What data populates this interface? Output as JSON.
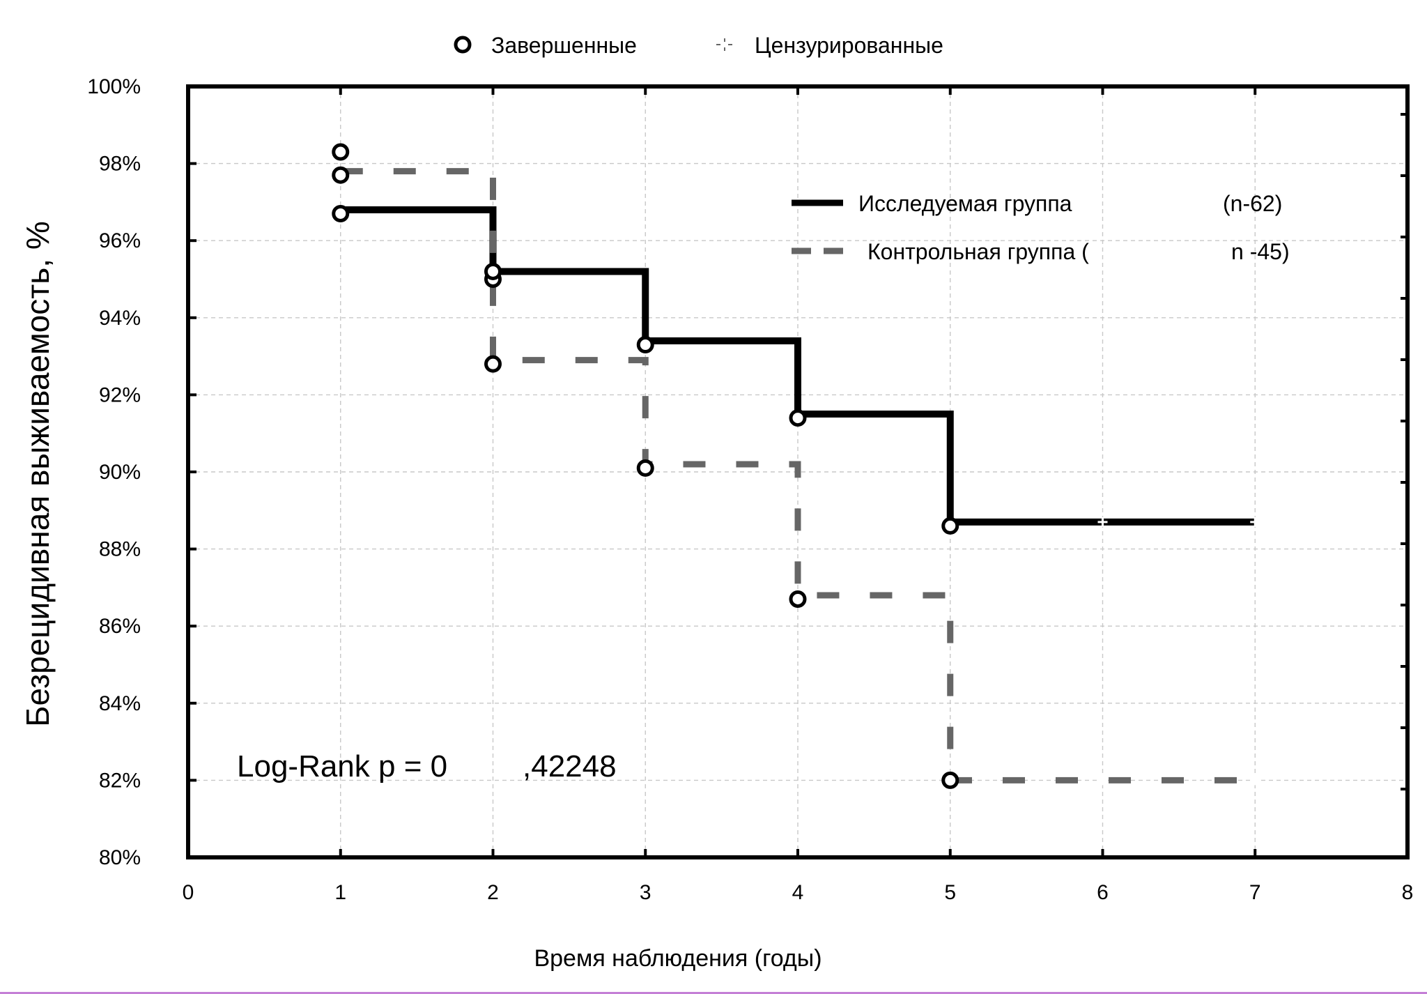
{
  "chart_data": {
    "type": "line",
    "title": "",
    "xlabel": "Время наблюдения (годы)",
    "ylabel": "Безрецидивная выживаемость,  %",
    "xlim": [
      0,
      8
    ],
    "ylim": [
      80,
      100
    ],
    "x_ticks": [
      0,
      1,
      2,
      3,
      4,
      5,
      6,
      7,
      8
    ],
    "x_tick_labels": [
      "0",
      "1",
      "2",
      "3",
      "4",
      "5",
      "6",
      "7",
      "8"
    ],
    "y_ticks": [
      80,
      82,
      84,
      86,
      88,
      90,
      92,
      94,
      96,
      98,
      100
    ],
    "y_tick_labels": [
      "80%",
      "82%",
      "84%",
      "86%",
      "88%",
      "90%",
      "92%",
      "94%",
      "96%",
      "98%",
      "100%"
    ],
    "grid": true,
    "marker_legend": {
      "completed": "Завершенные",
      "censored": "Цензурированные"
    },
    "series": [
      {
        "name": "Исследуемая группа",
        "n_label": "(n-62)",
        "style": "solid",
        "color": "#000000",
        "steps": [
          [
            1,
            96.8
          ],
          [
            2,
            95.2
          ],
          [
            3,
            93.4
          ],
          [
            4,
            91.5
          ],
          [
            5,
            88.7
          ],
          [
            7,
            88.7
          ]
        ],
        "completed": [
          [
            1,
            98.3
          ],
          [
            1,
            97.7
          ],
          [
            1,
            96.7
          ],
          [
            2,
            95.0
          ],
          [
            3,
            93.3
          ],
          [
            4,
            91.4
          ],
          [
            5,
            88.6
          ]
        ],
        "censored": [
          [
            6,
            88.7
          ],
          [
            7,
            88.7
          ]
        ]
      },
      {
        "name": "Контрольная группа (",
        "n_label": "n  -45)",
        "style": "dashed",
        "color": "#666666",
        "steps": [
          [
            1,
            97.8
          ],
          [
            2,
            92.9
          ],
          [
            3,
            90.2
          ],
          [
            4,
            86.8
          ],
          [
            5,
            82.0
          ],
          [
            7,
            82.0
          ]
        ],
        "completed": [
          [
            2,
            95.2
          ],
          [
            2,
            92.8
          ],
          [
            3,
            90.1
          ],
          [
            4,
            86.7
          ],
          [
            5,
            82.0
          ]
        ],
        "censored": [
          [
            6,
            82.0
          ],
          [
            7,
            82.0
          ]
        ]
      }
    ],
    "annotation": {
      "part1": "Log-Rank p = 0",
      "part2": ",42248"
    }
  }
}
